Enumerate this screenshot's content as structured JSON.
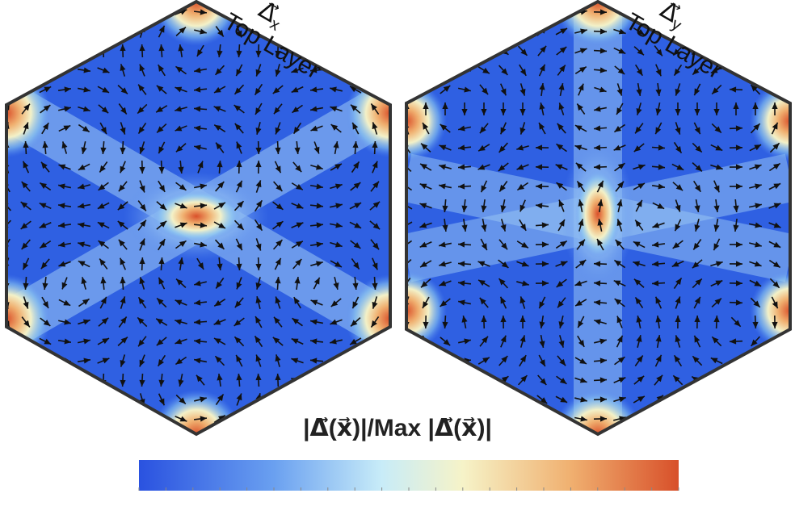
{
  "panels": [
    {
      "symbol": "Δ⃗",
      "subscript": "x",
      "caption": "Top Layer"
    },
    {
      "symbol": "Δ⃗",
      "subscript": "y",
      "caption": "Top Layer"
    }
  ],
  "colorbar": {
    "title": "|Δ⃗(x⃗)|/Max |Δ⃗(x⃗)|"
  }
}
